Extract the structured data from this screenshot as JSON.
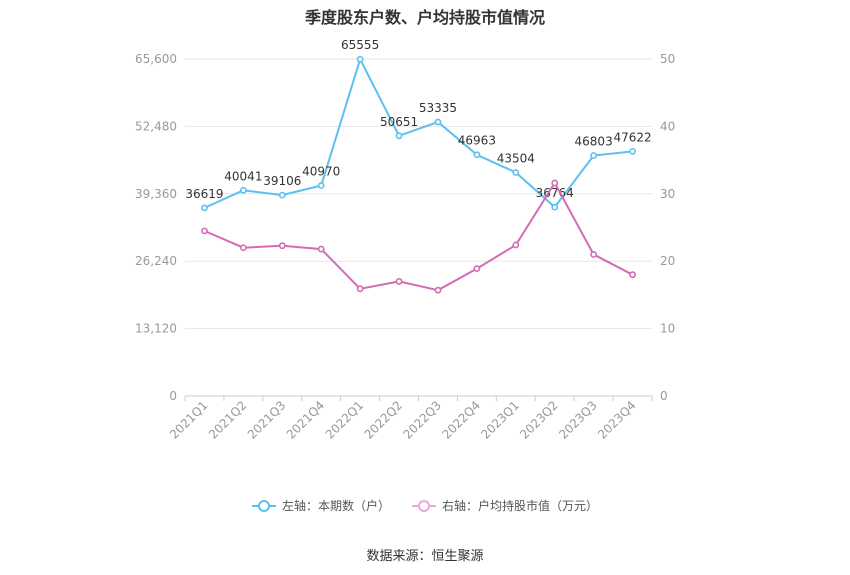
{
  "title": "季度股东户数、户均持股市值情况",
  "source": "数据来源：恒生聚源",
  "chart_data": {
    "type": "line",
    "categories": [
      "2021Q1",
      "2021Q2",
      "2021Q3",
      "2021Q4",
      "2022Q1",
      "2022Q2",
      "2022Q3",
      "2022Q4",
      "2023Q1",
      "2023Q2",
      "2023Q3",
      "2023Q4"
    ],
    "series": [
      {
        "name": "左轴：本期数（户）",
        "axis": "left",
        "color": "#5bc0f0",
        "values": [
          36619,
          40041,
          39106,
          40970,
          65555,
          50651,
          53335,
          46963,
          43504,
          36764,
          46803,
          47622
        ],
        "data_labels": [
          "36619",
          "40041",
          "39106",
          "40970",
          "65555",
          "50651",
          "53335",
          "46963",
          "43504",
          "36764",
          "46803",
          "47622"
        ]
      },
      {
        "name": "右轴：户均持股市值（万元）",
        "axis": "right",
        "color": "#d36bb5",
        "values": [
          24.5,
          22.0,
          22.3,
          21.8,
          15.9,
          17.0,
          15.7,
          18.9,
          22.4,
          31.6,
          21.0,
          18.0
        ]
      }
    ],
    "left_axis": {
      "ylim": [
        0,
        65600
      ],
      "ticks": [
        "0",
        "13,120",
        "26,240",
        "39,360",
        "52,480",
        "65,600"
      ]
    },
    "right_axis": {
      "ylim": [
        0,
        50
      ],
      "ticks": [
        "0",
        "10",
        "20",
        "30",
        "40",
        "50"
      ]
    },
    "grid": true,
    "legend_position": "bottom"
  }
}
